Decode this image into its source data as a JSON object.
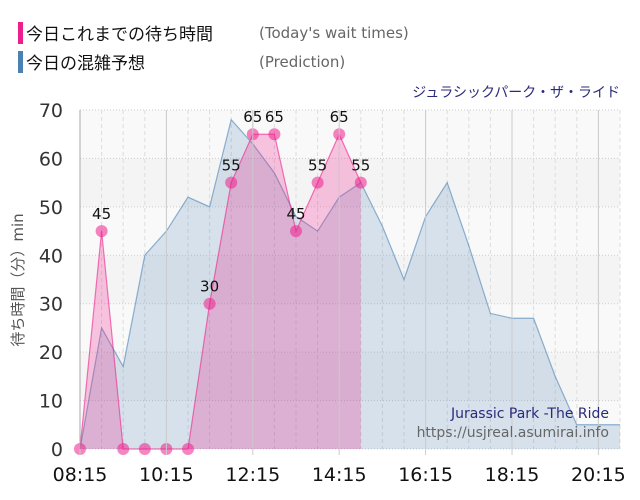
{
  "legend": [
    {
      "label": "今日これまでの待ち時間",
      "sub": "(Today's wait times)",
      "color": "#ee1f8c"
    },
    {
      "label": "今日の混雑予想",
      "sub": "(Prediction)",
      "color": "#4a82b4"
    }
  ],
  "ride_name_jp": "ジュラシックパーク・ザ・ライド",
  "watermark": {
    "title": "Jurassic Park -The Ride",
    "url": "https://usjreal.asumirai.info"
  },
  "chart_data": {
    "type": "area",
    "ylabel": "待ち時間（分）min",
    "ylim": [
      0,
      70
    ],
    "yticks": [
      0,
      10,
      20,
      30,
      40,
      50,
      60,
      70
    ],
    "xlim": [
      "08:15",
      "20:45"
    ],
    "xticks": [
      "08:15",
      "10:15",
      "12:15",
      "14:15",
      "16:15",
      "18:15",
      "20:15"
    ],
    "grid": true,
    "series": [
      {
        "name": "今日これまでの待ち時間",
        "color": "#ee1f8c",
        "x": [
          "08:15",
          "08:45",
          "09:15",
          "09:45",
          "10:15",
          "10:45",
          "11:15",
          "11:45",
          "12:15",
          "12:45",
          "13:15",
          "13:45",
          "14:15",
          "14:45"
        ],
        "values": [
          0,
          45,
          0,
          0,
          0,
          0,
          30,
          55,
          65,
          65,
          45,
          55,
          65,
          55
        ]
      },
      {
        "name": "今日の混雑予想",
        "color": "#4a82b4",
        "x": [
          "08:15",
          "08:45",
          "09:15",
          "09:45",
          "10:15",
          "10:45",
          "11:15",
          "11:45",
          "12:15",
          "12:45",
          "13:15",
          "13:45",
          "14:15",
          "14:45",
          "15:15",
          "15:45",
          "16:15",
          "16:45",
          "17:15",
          "17:45",
          "18:15",
          "18:45",
          "19:15",
          "19:45",
          "20:15",
          "20:45"
        ],
        "values": [
          0,
          25,
          17,
          40,
          45,
          52,
          50,
          68,
          63,
          57,
          48,
          45,
          52,
          55,
          46,
          35,
          48,
          55,
          42,
          28,
          27,
          27,
          15,
          5,
          5,
          5
        ]
      }
    ]
  }
}
